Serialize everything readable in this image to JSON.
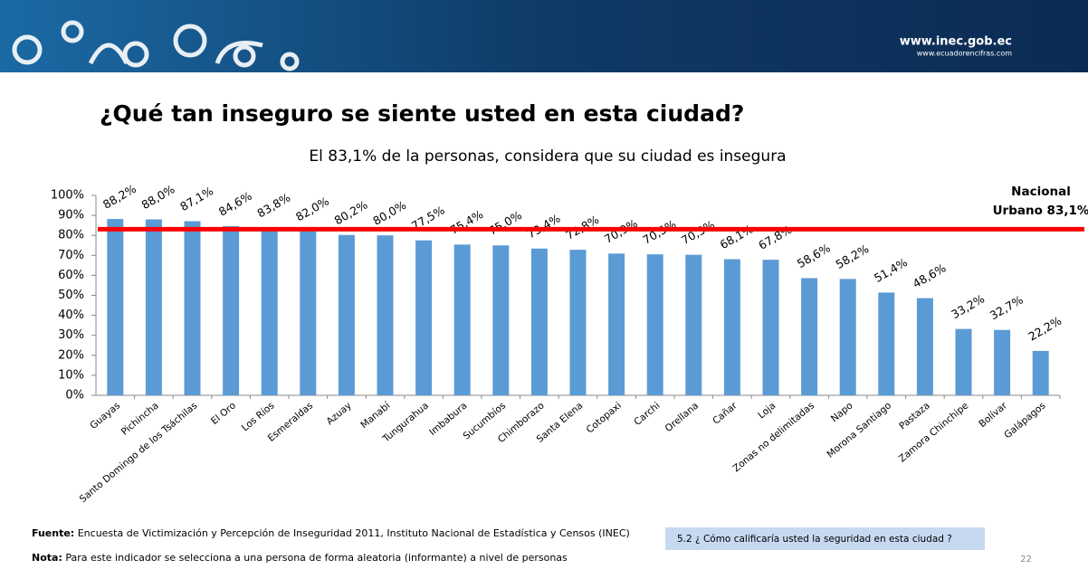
{
  "header": {
    "site": "www.inec.gob.ec",
    "site2": "www.ecuadorencifras.com"
  },
  "chart_data": {
    "type": "bar",
    "title": "¿Qué tan inseguro se siente usted en esta ciudad?",
    "subtitle": "El 83,1% de la personas, considera que su ciudad es insegura",
    "categories": [
      "Guayas",
      "Pichincha",
      "Santo Domingo de los Tsáchilas",
      "El Oro",
      "Los Ríos",
      "Esmeraldas",
      "Azuay",
      "Manabí",
      "Tungurahua",
      "Imbabura",
      "Sucumbíos",
      "Chimborazo",
      "Santa Elena",
      "Cotopaxi",
      "Carchi",
      "Orellana",
      "Cañar",
      "Loja",
      "Zonas no delimitadas",
      "Napo",
      "Morona Santiago",
      "Pastaza",
      "Zamora Chinchipe",
      "Bolívar",
      "Galápagos"
    ],
    "values": [
      88.2,
      88.0,
      87.1,
      84.6,
      83.8,
      82.0,
      80.2,
      80.0,
      77.5,
      75.4,
      75.0,
      73.4,
      72.8,
      70.9,
      70.5,
      70.3,
      68.1,
      67.8,
      58.6,
      58.2,
      51.4,
      48.6,
      33.2,
      32.7,
      22.2
    ],
    "value_labels": [
      "88,2%",
      "88,0%",
      "87,1%",
      "84,6%",
      "83,8%",
      "82,0%",
      "80,2%",
      "80,0%",
      "77,5%",
      "75,4%",
      "75,0%",
      "73,4%",
      "72,8%",
      "70,9%",
      "70,5%",
      "70,3%",
      "68,1%",
      "67,8%",
      "58,6%",
      "58,2%",
      "51,4%",
      "48,6%",
      "33,2%",
      "32,7%",
      "22,2%"
    ],
    "color": "#5b9bd5",
    "ylim": [
      0,
      100
    ],
    "yticks": [
      {
        "value": 0,
        "label": "0%"
      },
      {
        "value": 10,
        "label": "10%"
      },
      {
        "value": 20,
        "label": "20%"
      },
      {
        "value": 30,
        "label": "30%"
      },
      {
        "value": 40,
        "label": "40%"
      },
      {
        "value": 50,
        "label": "50%"
      },
      {
        "value": 60,
        "label": "60%"
      },
      {
        "value": 70,
        "label": "70%"
      },
      {
        "value": 80,
        "label": "80%"
      },
      {
        "value": 90,
        "label": "90%"
      },
      {
        "value": 100,
        "label": "100%"
      }
    ],
    "grid": false,
    "reference_line": {
      "value": 83.1,
      "label": [
        "Nacional",
        "Urbano 83,1%"
      ],
      "color": "#ff0000"
    }
  },
  "footer": {
    "source_label": "Fuente:",
    "source": "Encuesta de Victimización y Percepción de Inseguridad 2011, Instituto Nacional de Estadística y Censos (INEC)",
    "note_label": "Nota:",
    "note": "Para este indicador se selecciona a una persona  de forma aleatoria (informante)  a nivel de personas",
    "question": "5.2 ¿ Cómo calificaría usted la seguridad en esta ciudad ?",
    "page": "22"
  }
}
